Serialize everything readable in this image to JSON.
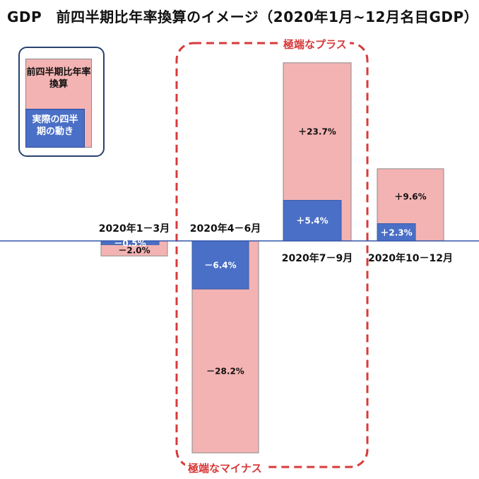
{
  "title": "GDP　前四半期比年率換算のイメージ（2020年1月~12月名目GDP）",
  "legend": {
    "annualized_label": "前四半期比年率換算",
    "actual_label": "実際の四半期の動き"
  },
  "annotations": {
    "extreme_plus": "極端なプラス",
    "extreme_minus": "極端なマイナス"
  },
  "colors": {
    "annualized": "#f4b3b3",
    "actual": "#4a6fc6",
    "axis": "#3355aa",
    "highlight": "#d83a3a"
  },
  "chart_data": {
    "type": "bar",
    "categories": [
      "2020年1－3月",
      "2020年4－6月",
      "2020年7－9月",
      "2020年10－12月"
    ],
    "series": [
      {
        "name": "前四半期比年率換算",
        "values": [
          -2.0,
          -28.2,
          23.7,
          9.6
        ],
        "labels": [
          "－2.0%",
          "－28.2%",
          "＋23.7%",
          "＋9.6%"
        ]
      },
      {
        "name": "実際の四半期の動き",
        "values": [
          -0.5,
          -6.4,
          5.4,
          2.3
        ],
        "labels": [
          "－0.5%",
          "－6.4%",
          "＋5.4%",
          "＋2.3%"
        ]
      }
    ],
    "ylim": [
      -28.2,
      23.7
    ],
    "grid": false,
    "legend_position": "top-left"
  }
}
